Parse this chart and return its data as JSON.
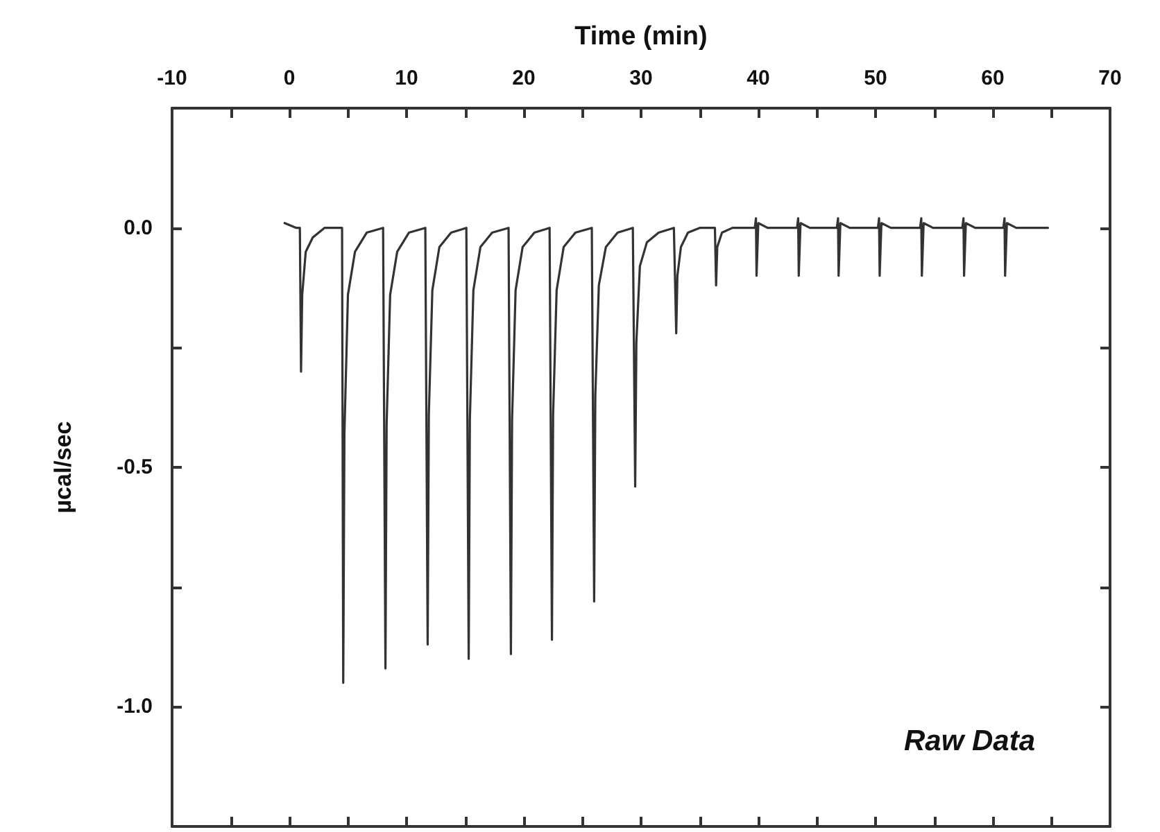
{
  "chart_data": {
    "type": "line",
    "xlabel": "Time (min)",
    "ylabel": "µcal/sec",
    "annotations": [
      "Raw Data"
    ],
    "marker": "none",
    "line_style": "solid",
    "xlim": [
      -10,
      70
    ],
    "xticks": [
      -10,
      {
        "value": -5,
        "label": null
      },
      0,
      {
        "value": 5,
        "label": null
      },
      10,
      {
        "value": 15,
        "label": null
      },
      20,
      {
        "value": 25,
        "label": null
      },
      30,
      {
        "value": 35,
        "label": null
      },
      40,
      {
        "value": 45,
        "label": null
      },
      50,
      {
        "value": 55,
        "label": null
      },
      60,
      {
        "value": 65,
        "label": null
      },
      70
    ],
    "ylim": [
      -1.25,
      0.25
    ],
    "yticks": [
      {
        "value": -1,
        "label": "-1.0"
      },
      {
        "value": -0.75,
        "label": null
      },
      {
        "value": -0.5,
        "label": "-0.5"
      },
      {
        "value": -0.25,
        "label": null
      },
      {
        "value": 0,
        "label": "0.0"
      }
    ],
    "series": [
      {
        "color": "#333333",
        "x": [
          -0.4,
          0.6,
          0.9,
          1.0,
          1.1,
          1.4,
          2.0,
          3.0,
          4.5,
          4.6,
          4.7,
          5.0,
          5.6,
          6.6,
          8.0,
          8.2,
          8.3,
          8.6,
          9.2,
          10.2,
          11.6,
          11.8,
          11.9,
          12.2,
          12.8,
          13.8,
          15.1,
          15.3,
          15.4,
          15.7,
          16.3,
          17.3,
          18.7,
          18.9,
          19.0,
          19.3,
          19.9,
          20.9,
          22.2,
          22.4,
          22.5,
          22.8,
          23.4,
          24.4,
          25.8,
          26.0,
          26.1,
          26.4,
          27.0,
          28.0,
          29.3,
          29.5,
          29.6,
          29.9,
          30.5,
          31.5,
          32.8,
          33.0,
          33.1,
          33.4,
          34.0,
          35.0,
          36.3,
          36.4,
          36.5,
          36.9,
          37.8,
          39.7,
          39.8,
          39.85,
          40.0,
          40.8,
          43.3,
          43.4,
          43.45,
          43.6,
          44.4,
          46.7,
          46.8,
          46.85,
          47.0,
          47.8,
          50.2,
          50.3,
          50.35,
          50.5,
          51.3,
          53.8,
          53.9,
          53.95,
          54.1,
          54.9,
          57.4,
          57.5,
          57.55,
          57.7,
          58.5,
          60.9,
          61.0,
          61.05,
          61.2,
          62.0,
          64.7
        ],
        "values": [
          0.01,
          0.0,
          0.0,
          -0.3,
          -0.14,
          -0.05,
          -0.02,
          0.0,
          0.0,
          -0.95,
          -0.43,
          -0.14,
          -0.05,
          -0.01,
          0.0,
          -0.92,
          -0.41,
          -0.14,
          -0.05,
          -0.01,
          0.0,
          -0.87,
          -0.39,
          -0.13,
          -0.04,
          -0.01,
          0.0,
          -0.9,
          -0.4,
          -0.13,
          -0.04,
          -0.01,
          0.0,
          -0.89,
          -0.4,
          -0.13,
          -0.04,
          -0.01,
          0.0,
          -0.86,
          -0.39,
          -0.13,
          -0.04,
          -0.01,
          0.0,
          -0.78,
          -0.35,
          -0.12,
          -0.04,
          -0.01,
          0.0,
          -0.54,
          -0.24,
          -0.08,
          -0.03,
          -0.01,
          0.0,
          -0.22,
          -0.1,
          -0.04,
          -0.01,
          0.0,
          0.0,
          -0.12,
          -0.04,
          -0.01,
          0.0,
          0.0,
          0.02,
          -0.1,
          0.01,
          0.0,
          0.0,
          0.02,
          -0.1,
          0.01,
          0.0,
          0.0,
          0.02,
          -0.1,
          0.01,
          0.0,
          0.0,
          0.02,
          -0.1,
          0.01,
          0.0,
          0.0,
          0.02,
          -0.1,
          0.01,
          0.0,
          0.0,
          0.02,
          -0.1,
          0.01,
          0.0,
          0.0,
          0.02,
          -0.1,
          0.01,
          0.0,
          0.0
        ]
      }
    ]
  }
}
